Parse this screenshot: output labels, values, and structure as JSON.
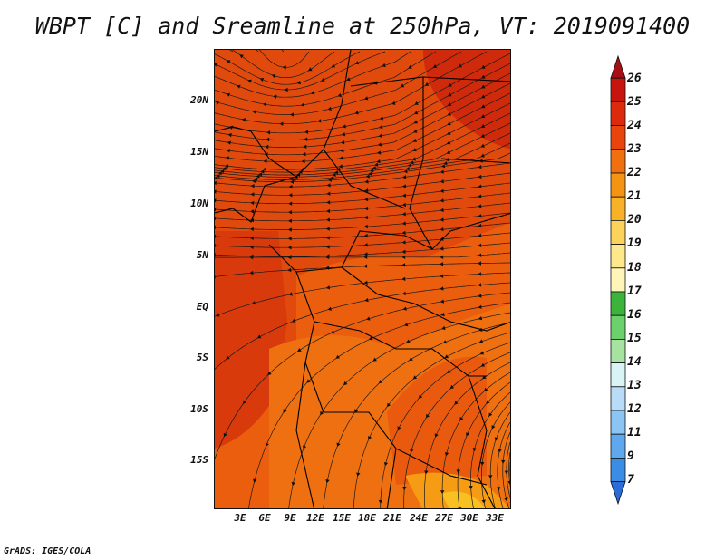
{
  "title": "WBPT [C] and Sreamline at 250hPa, VT: 2019091400",
  "credit": "GrADS: IGES/COLA",
  "lat_labels": [
    "20N",
    "15N",
    "10N",
    "5N",
    "EQ",
    "5S",
    "10S",
    "15S"
  ],
  "lon_labels": [
    "3E",
    "6E",
    "9E",
    "12E",
    "15E",
    "18E",
    "21E",
    "24E",
    "27E",
    "30E",
    "33E"
  ],
  "colorbar": {
    "labels": [
      "26",
      "25",
      "24",
      "23",
      "22",
      "21",
      "20",
      "19",
      "18",
      "17",
      "16",
      "15",
      "14",
      "13",
      "12",
      "11",
      "9",
      "7"
    ],
    "colors": [
      "#a50f15",
      "#c8140e",
      "#dd2a0c",
      "#e8440c",
      "#f07010",
      "#f59412",
      "#f8b228",
      "#fbd25a",
      "#fde98c",
      "#fff5b8",
      "#3cb43c",
      "#6cd06c",
      "#a6e2a0",
      "#d8f4f4",
      "#b8dcf8",
      "#8cc4f4",
      "#60a8ee",
      "#3a8ce4",
      "#2a6cd8"
    ],
    "colors_top_to_bottom_note": "arrow top = darkest red, arrow bottom = blue"
  },
  "map_fields": {
    "base_color": "#e04a0c",
    "dark_color": "#d2290c",
    "light_color": "#ef7410",
    "yellow_color": "#f7a81a"
  }
}
